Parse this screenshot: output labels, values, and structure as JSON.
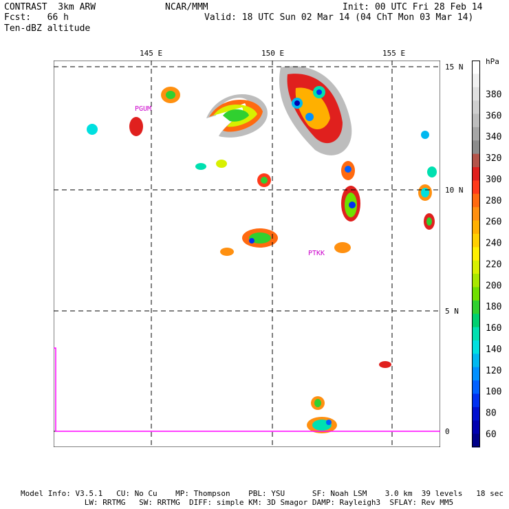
{
  "header": {
    "left_line1": "CONTRAST  3km ARW",
    "center_line1": "NCAR/MMM",
    "right_line1": "Init: 00 UTC Fri 28 Feb 14",
    "left_line2": "Fcst:   66 h",
    "right_line2": "Valid: 18 UTC Sun 02 Mar 14 (04 ChT Mon 03 Mar 14)",
    "field_label": "Ten-dBZ altitude"
  },
  "map": {
    "lon_labels": [
      "145 E",
      "150 E",
      "155 E"
    ],
    "lat_labels": [
      "15 N",
      "10 N",
      "5 N",
      "0"
    ],
    "stations": [
      "PGUM",
      "PTKK"
    ],
    "station_color": "#cc00cc",
    "boundary_color": "#ff00ff"
  },
  "colorbar": {
    "unit": "hPa",
    "ticks": [
      "380",
      "360",
      "340",
      "320",
      "300",
      "280",
      "260",
      "240",
      "220",
      "200",
      "180",
      "160",
      "140",
      "120",
      "100",
      "80",
      "60"
    ],
    "colors": [
      "#ffffff",
      "#f0f0f0",
      "#e0e0e0",
      "#cfcfcf",
      "#bdbdbd",
      "#a6a6a6",
      "#8c8c8c",
      "#b4544a",
      "#e0201e",
      "#ff3a1a",
      "#ff6a10",
      "#ff9010",
      "#ffb000",
      "#ffd000",
      "#fff000",
      "#d8f000",
      "#a8e800",
      "#70e000",
      "#30d030",
      "#00d070",
      "#00e0b0",
      "#00e0e0",
      "#00b8f0",
      "#0090ff",
      "#0060ff",
      "#0030f0",
      "#0010d0",
      "#0000b0",
      "#00008a"
    ]
  },
  "footer": {
    "line1": "Model Info: V3.5.1   CU: No Cu    MP: Thompson    PBL: YSU      SF: Noah LSM    3.0 km  39 levels   18 sec",
    "line2": "              LW: RRTMG   SW: RRTMG  DIFF: simple KM: 3D Smagor DAMP: Rayleigh3  SFLAY: Rev MM5"
  }
}
